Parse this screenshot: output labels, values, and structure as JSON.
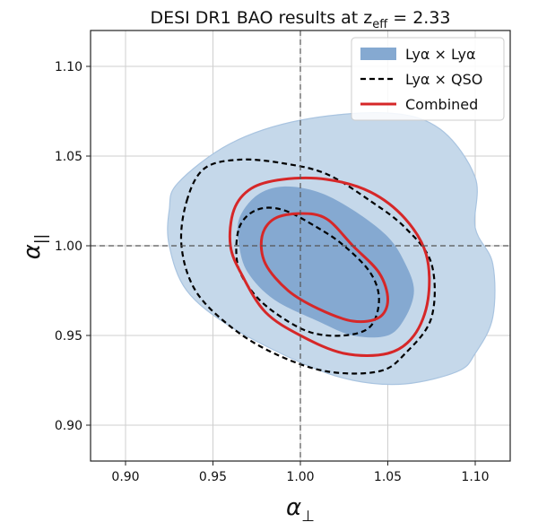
{
  "chart_data": {
    "type": "contour",
    "title": "DESI DR1 BAO results at z",
    "title_sub": "eff",
    "title_suffix": " = 2.33",
    "xlabel": "α",
    "xlabel_sub": "⊥",
    "ylabel": "α",
    "ylabel_sub": "||",
    "xlim": [
      0.88,
      1.12
    ],
    "ylim": [
      0.88,
      1.12
    ],
    "xticks": [
      0.9,
      0.95,
      1.0,
      1.05,
      1.1
    ],
    "yticks": [
      0.9,
      0.95,
      1.0,
      1.05,
      1.1
    ],
    "xtick_labels": [
      "0.90",
      "0.95",
      "1.00",
      "1.05",
      "1.10"
    ],
    "ytick_labels": [
      "0.90",
      "0.95",
      "1.00",
      "1.05",
      "1.10"
    ],
    "grid": true,
    "reference_lines": {
      "x": 1.0,
      "y": 1.0,
      "style": "dashed"
    },
    "legend_position": "top-right",
    "series": [
      {
        "name": "Lyα × Lyα",
        "style": "filled",
        "color_inner": "#85a9d1",
        "color_outer": "#c5d8ea",
        "contours": [
          {
            "level": "2-sigma",
            "points": [
              [
                0.93,
                1.035
              ],
              [
                0.96,
                1.057
              ],
              [
                1.0,
                1.07
              ],
              [
                1.05,
                1.074
              ],
              [
                1.08,
                1.065
              ],
              [
                1.1,
                1.038
              ],
              [
                1.1,
                1.01
              ],
              [
                1.11,
                0.99
              ],
              [
                1.11,
                0.96
              ],
              [
                1.1,
                0.94
              ],
              [
                1.09,
                0.93
              ],
              [
                1.06,
                0.923
              ],
              [
                1.03,
                0.925
              ],
              [
                1.0,
                0.935
              ],
              [
                0.96,
                0.955
              ],
              [
                0.935,
                0.975
              ],
              [
                0.925,
                1.0
              ],
              [
                0.925,
                1.02
              ]
            ]
          },
          {
            "level": "1-sigma",
            "points": [
              [
                0.965,
                1.015
              ],
              [
                0.975,
                1.028
              ],
              [
                0.99,
                1.033
              ],
              [
                1.01,
                1.03
              ],
              [
                1.03,
                1.02
              ],
              [
                1.05,
                1.005
              ],
              [
                1.06,
                0.99
              ],
              [
                1.065,
                0.975
              ],
              [
                1.06,
                0.96
              ],
              [
                1.05,
                0.95
              ],
              [
                1.03,
                0.95
              ],
              [
                1.01,
                0.958
              ],
              [
                0.985,
                0.97
              ],
              [
                0.97,
                0.985
              ],
              [
                0.965,
                1.0
              ]
            ]
          }
        ]
      },
      {
        "name": "Lyα × QSO",
        "style": "dashed",
        "color": "#000000",
        "contours": [
          {
            "level": "2-sigma",
            "points": [
              [
                0.935,
                1.025
              ],
              [
                0.945,
                1.043
              ],
              [
                0.965,
                1.048
              ],
              [
                0.99,
                1.046
              ],
              [
                1.015,
                1.04
              ],
              [
                1.04,
                1.025
              ],
              [
                1.06,
                1.01
              ],
              [
                1.075,
                0.99
              ],
              [
                1.075,
                0.96
              ],
              [
                1.06,
                0.94
              ],
              [
                1.045,
                0.93
              ],
              [
                1.015,
                0.93
              ],
              [
                0.985,
                0.94
              ],
              [
                0.96,
                0.955
              ],
              [
                0.94,
                0.975
              ],
              [
                0.932,
                1.0
              ]
            ]
          },
          {
            "level": "1-sigma",
            "points": [
              [
                0.965,
                1.01
              ],
              [
                0.975,
                1.02
              ],
              [
                0.99,
                1.02
              ],
              [
                1.01,
                1.01
              ],
              [
                1.025,
                1.0
              ],
              [
                1.04,
                0.985
              ],
              [
                1.045,
                0.97
              ],
              [
                1.04,
                0.955
              ],
              [
                1.025,
                0.95
              ],
              [
                1.005,
                0.952
              ],
              [
                0.985,
                0.963
              ],
              [
                0.972,
                0.975
              ],
              [
                0.964,
                0.99
              ]
            ]
          }
        ]
      },
      {
        "name": "Combined",
        "style": "solid",
        "color": "#d62728",
        "contours": [
          {
            "level": "2-sigma",
            "points": [
              [
                0.962,
                1.02
              ],
              [
                0.972,
                1.032
              ],
              [
                0.99,
                1.037
              ],
              [
                1.015,
                1.037
              ],
              [
                1.04,
                1.03
              ],
              [
                1.06,
                1.015
              ],
              [
                1.072,
                0.995
              ],
              [
                1.073,
                0.97
              ],
              [
                1.065,
                0.95
              ],
              [
                1.05,
                0.94
              ],
              [
                1.025,
                0.94
              ],
              [
                1.0,
                0.95
              ],
              [
                0.98,
                0.963
              ],
              [
                0.967,
                0.983
              ],
              [
                0.96,
                1.0
              ]
            ]
          },
          {
            "level": "1-sigma",
            "points": [
              [
                0.978,
                1.005
              ],
              [
                0.985,
                1.015
              ],
              [
                1.0,
                1.018
              ],
              [
                1.015,
                1.015
              ],
              [
                1.03,
                1.0
              ],
              [
                1.045,
                0.985
              ],
              [
                1.05,
                0.97
              ],
              [
                1.045,
                0.96
              ],
              [
                1.03,
                0.958
              ],
              [
                1.01,
                0.965
              ],
              [
                0.993,
                0.975
              ],
              [
                0.98,
                0.99
              ]
            ]
          }
        ]
      }
    ]
  }
}
